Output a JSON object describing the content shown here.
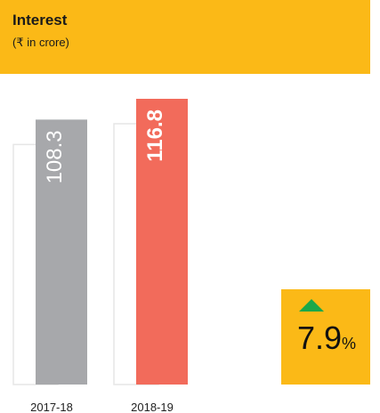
{
  "chart_data": {
    "type": "bar",
    "title": "Interest",
    "subtitle": "(₹ in crore)",
    "categories": [
      "2017-18",
      "2018-19"
    ],
    "values": [
      108.3,
      116.8
    ],
    "colors": [
      "#a7a8ab",
      "#f26b5b"
    ],
    "change": {
      "value": 7.9,
      "unit": "%",
      "direction": "up"
    }
  }
}
